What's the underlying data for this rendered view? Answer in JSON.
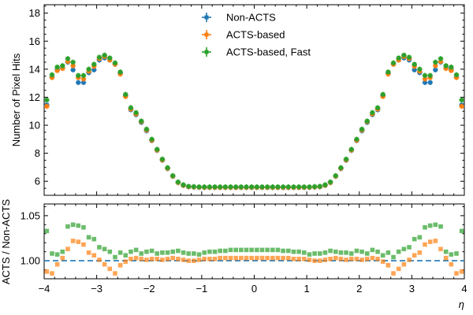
{
  "chart_data": [
    {
      "type": "scatter",
      "panel": "main",
      "ylabel": "Number of Pixel Hits",
      "xlim": [
        -4,
        4
      ],
      "ylim": [
        5,
        18.6
      ],
      "yticks": [
        6,
        8,
        10,
        12,
        14,
        16,
        18
      ],
      "ytick_labels": [
        "6",
        "8",
        "10",
        "12",
        "14",
        "16",
        "18"
      ],
      "grid": false,
      "legend": {
        "position": "top-center"
      },
      "x": [
        -3.95,
        -3.85,
        -3.75,
        -3.65,
        -3.55,
        -3.45,
        -3.35,
        -3.25,
        -3.15,
        -3.05,
        -2.95,
        -2.85,
        -2.75,
        -2.65,
        -2.55,
        -2.45,
        -2.35,
        -2.25,
        -2.15,
        -2.05,
        -1.95,
        -1.85,
        -1.75,
        -1.65,
        -1.55,
        -1.45,
        -1.35,
        -1.25,
        -1.15,
        -1.05,
        -0.95,
        -0.85,
        -0.75,
        -0.65,
        -0.55,
        -0.45,
        -0.35,
        -0.25,
        -0.15,
        -0.05,
        0.05,
        0.15,
        0.25,
        0.35,
        0.45,
        0.55,
        0.65,
        0.75,
        0.85,
        0.95,
        1.05,
        1.15,
        1.25,
        1.35,
        1.45,
        1.55,
        1.65,
        1.75,
        1.85,
        1.95,
        2.05,
        2.15,
        2.25,
        2.35,
        2.45,
        2.55,
        2.65,
        2.75,
        2.85,
        2.95,
        3.05,
        3.15,
        3.25,
        3.35,
        3.45,
        3.55,
        3.65,
        3.75,
        3.85,
        3.95
      ],
      "series": [
        {
          "name": "Non-ACTS",
          "color": "#1f77b4",
          "values": [
            11.45,
            13.45,
            14.0,
            14.1,
            14.5,
            13.95,
            13.05,
            13.05,
            13.75,
            13.95,
            14.65,
            14.8,
            14.65,
            14.35,
            13.7,
            12.1,
            11.1,
            10.75,
            10.2,
            9.6,
            8.9,
            8.2,
            7.5,
            6.9,
            6.35,
            5.9,
            5.7,
            5.6,
            5.58,
            5.56,
            5.55,
            5.55,
            5.55,
            5.55,
            5.55,
            5.55,
            5.55,
            5.55,
            5.55,
            5.55,
            5.55,
            5.55,
            5.55,
            5.55,
            5.55,
            5.55,
            5.55,
            5.55,
            5.55,
            5.55,
            5.56,
            5.58,
            5.6,
            5.7,
            5.9,
            6.35,
            6.9,
            7.5,
            8.2,
            8.9,
            9.6,
            10.2,
            10.75,
            11.1,
            12.1,
            13.7,
            14.35,
            14.65,
            14.8,
            14.65,
            13.95,
            13.75,
            13.05,
            13.05,
            13.95,
            14.5,
            14.1,
            14.0,
            13.45,
            11.45
          ]
        },
        {
          "name": "ACTS-based",
          "color": "#ff7f0e",
          "values": [
            11.35,
            13.4,
            13.9,
            14.05,
            14.55,
            14.25,
            13.4,
            13.3,
            13.85,
            14.2,
            14.75,
            14.9,
            14.65,
            14.35,
            13.65,
            12.05,
            11.15,
            10.8,
            10.25,
            9.65,
            8.92,
            8.22,
            7.52,
            6.92,
            6.36,
            5.91,
            5.71,
            5.61,
            5.59,
            5.57,
            5.56,
            5.56,
            5.56,
            5.56,
            5.56,
            5.56,
            5.56,
            5.56,
            5.56,
            5.56,
            5.56,
            5.56,
            5.56,
            5.56,
            5.56,
            5.56,
            5.56,
            5.56,
            5.56,
            5.56,
            5.57,
            5.59,
            5.61,
            5.71,
            5.91,
            6.36,
            6.92,
            7.52,
            8.22,
            8.92,
            9.65,
            10.25,
            10.8,
            11.15,
            12.05,
            13.65,
            14.35,
            14.65,
            14.9,
            14.75,
            14.2,
            13.85,
            13.3,
            13.4,
            14.25,
            14.55,
            14.05,
            13.9,
            13.4,
            11.35
          ]
        },
        {
          "name": "ACTS-based, Fast",
          "color": "#2ca02c",
          "values": [
            11.8,
            13.6,
            14.15,
            14.25,
            14.75,
            14.5,
            13.55,
            13.55,
            14.0,
            14.35,
            14.85,
            15.0,
            14.8,
            14.45,
            13.8,
            12.2,
            11.25,
            10.9,
            10.3,
            9.72,
            9.0,
            8.28,
            7.58,
            6.97,
            6.4,
            5.95,
            5.75,
            5.64,
            5.62,
            5.6,
            5.6,
            5.6,
            5.6,
            5.6,
            5.6,
            5.6,
            5.6,
            5.6,
            5.6,
            5.6,
            5.6,
            5.6,
            5.6,
            5.6,
            5.6,
            5.6,
            5.6,
            5.6,
            5.6,
            5.6,
            5.6,
            5.62,
            5.64,
            5.75,
            5.95,
            6.4,
            6.97,
            7.58,
            8.28,
            9.0,
            9.72,
            10.3,
            10.9,
            11.25,
            12.2,
            13.8,
            14.45,
            14.8,
            15.0,
            14.85,
            14.35,
            14.0,
            13.55,
            13.55,
            14.5,
            14.75,
            14.25,
            14.15,
            13.6,
            11.8
          ]
        }
      ]
    },
    {
      "type": "scatter",
      "panel": "ratio",
      "xlabel": "η",
      "ylabel": "ACTS / Non-ACTS",
      "xlim": [
        -4,
        4
      ],
      "ylim": [
        0.98,
        1.063
      ],
      "xticks": [
        -4,
        -3,
        -2,
        -1,
        0,
        1,
        2,
        3,
        4
      ],
      "xtick_labels": [
        "−4",
        "−3",
        "−2",
        "−1",
        "0",
        "1",
        "2",
        "3",
        "4"
      ],
      "yticks": [
        1.0,
        1.05
      ],
      "ytick_labels": [
        "1.00",
        "1.05"
      ],
      "reference_line": 1.0,
      "x": [
        -3.95,
        -3.85,
        -3.75,
        -3.65,
        -3.55,
        -3.45,
        -3.35,
        -3.25,
        -3.15,
        -3.05,
        -2.95,
        -2.85,
        -2.75,
        -2.65,
        -2.55,
        -2.45,
        -2.35,
        -2.25,
        -2.15,
        -2.05,
        -1.95,
        -1.85,
        -1.75,
        -1.65,
        -1.55,
        -1.45,
        -1.35,
        -1.25,
        -1.15,
        -1.05,
        -0.95,
        -0.85,
        -0.75,
        -0.65,
        -0.55,
        -0.45,
        -0.35,
        -0.25,
        -0.15,
        -0.05,
        0.05,
        0.15,
        0.25,
        0.35,
        0.45,
        0.55,
        0.65,
        0.75,
        0.85,
        0.95,
        1.05,
        1.15,
        1.25,
        1.35,
        1.45,
        1.55,
        1.65,
        1.75,
        1.85,
        1.95,
        2.05,
        2.15,
        2.25,
        2.35,
        2.45,
        2.55,
        2.65,
        2.75,
        2.85,
        2.95,
        3.05,
        3.15,
        3.25,
        3.35,
        3.45,
        3.55,
        3.65,
        3.75,
        3.85,
        3.95
      ],
      "series": [
        {
          "name": "ACTS-based",
          "color": "#ff7f0e",
          "values": [
            0.988,
            0.986,
            0.996,
            1.003,
            1.013,
            1.022,
            1.021,
            1.018,
            1.009,
            1.006,
            1.001,
            0.996,
            0.991,
            0.986,
            0.995,
            0.999,
            1.002,
            1.003,
            1.002,
            1.001,
            1.002,
            1.002,
            1.001,
            1.002,
            1.003,
            1.002,
            1.001,
            1.0,
            1.0,
            1.001,
            1.002,
            1.002,
            1.002,
            1.003,
            1.003,
            1.003,
            1.003,
            1.003,
            1.003,
            1.003,
            1.003,
            1.003,
            1.003,
            1.003,
            1.003,
            1.003,
            1.003,
            1.002,
            1.002,
            1.002,
            1.001,
            1.0,
            1.0,
            1.001,
            1.002,
            1.003,
            1.002,
            1.001,
            1.002,
            1.002,
            1.001,
            1.002,
            1.003,
            1.002,
            0.999,
            0.995,
            0.986,
            0.991,
            0.996,
            1.001,
            1.006,
            1.009,
            1.018,
            1.021,
            1.022,
            1.013,
            1.003,
            0.996,
            0.986,
            0.988
          ]
        },
        {
          "name": "ACTS-based, Fast",
          "color": "#2ca02c",
          "values": [
            1.033,
            1.008,
            1.007,
            1.01,
            1.038,
            1.04,
            1.039,
            1.037,
            1.026,
            1.024,
            1.015,
            1.013,
            1.01,
            1.004,
            1.009,
            1.006,
            1.01,
            1.012,
            1.008,
            1.01,
            1.011,
            1.008,
            1.009,
            1.009,
            1.01,
            1.011,
            1.009,
            1.008,
            1.008,
            1.007,
            1.009,
            1.01,
            1.01,
            1.011,
            1.011,
            1.012,
            1.012,
            1.012,
            1.012,
            1.012,
            1.012,
            1.012,
            1.012,
            1.012,
            1.012,
            1.011,
            1.011,
            1.01,
            1.01,
            1.009,
            1.007,
            1.008,
            1.008,
            1.009,
            1.011,
            1.01,
            1.009,
            1.009,
            1.008,
            1.011,
            1.01,
            1.008,
            1.012,
            1.01,
            1.006,
            1.009,
            1.004,
            1.01,
            1.013,
            1.015,
            1.024,
            1.026,
            1.037,
            1.039,
            1.04,
            1.038,
            1.01,
            1.007,
            1.008,
            1.033
          ]
        }
      ]
    }
  ]
}
